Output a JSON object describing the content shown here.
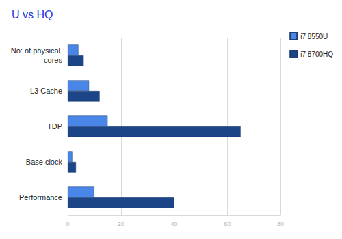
{
  "chart_data": {
    "type": "bar",
    "title": "U vs HQ",
    "orientation": "horizontal",
    "categories": [
      "No: of physical cores",
      "L3 Cache",
      "TDP",
      "Base clock",
      "Performance"
    ],
    "series": [
      {
        "name": "i7 8550U",
        "color": "#4a86e8",
        "values": [
          4,
          8,
          15,
          1.7,
          10
        ]
      },
      {
        "name": "i7 8700HQ",
        "color": "#1c4587",
        "values": [
          6,
          12,
          65,
          3.1,
          40
        ]
      }
    ],
    "xlim": [
      0,
      80
    ],
    "xticks": [
      0,
      20,
      40,
      60,
      80
    ],
    "grid": true,
    "legend": "top-right"
  }
}
